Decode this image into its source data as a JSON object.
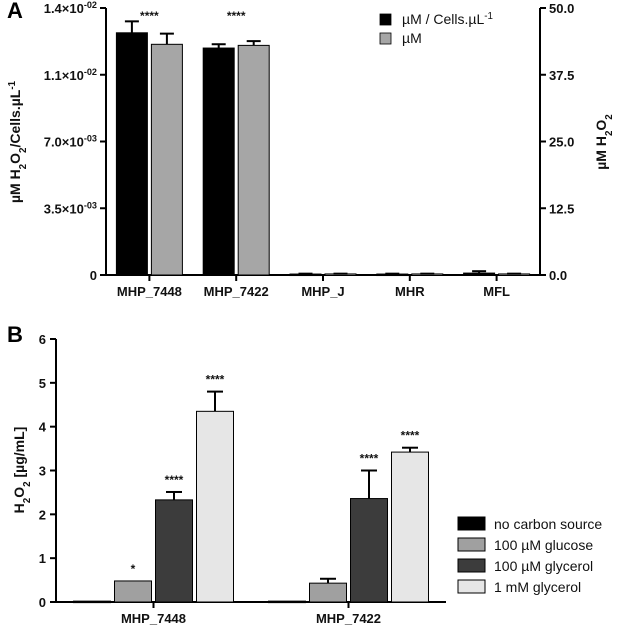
{
  "panels": {
    "a": {
      "letter": "A"
    },
    "b": {
      "letter": "B"
    }
  },
  "chart_data": [
    {
      "type": "bar",
      "categories": [
        "MHP_7448",
        "MHP_7422",
        "MHP_J",
        "MHR",
        "MFL"
      ],
      "series": [
        {
          "name": "µM / Cells.µL",
          "name_sup": "-1",
          "color": "#000000",
          "axis": "left",
          "values": [
            0.0127,
            0.0119,
            5e-05,
            5e-05,
            0.0001
          ],
          "errors": [
            0.0006,
            0.0002,
            2e-05,
            2e-05,
            0.0001
          ]
        },
        {
          "name": "µM",
          "color": "#a6a6a6",
          "axis": "right",
          "values": [
            43.2,
            43.0,
            0.2,
            0.2,
            0.2
          ],
          "errors": [
            2.0,
            0.8,
            0.05,
            0.05,
            0.05
          ]
        }
      ],
      "significance": [
        "****",
        "****",
        "",
        "",
        ""
      ],
      "y_left": {
        "label": "µM H2O2/Cells.µL-1",
        "label_parts": [
          "µM H",
          "2",
          "O",
          "2",
          "/Cells.µL",
          "-1"
        ],
        "ylim": [
          0,
          0.014
        ],
        "ticks": [
          0,
          0.0035,
          0.007,
          0.0105,
          0.014
        ],
        "tick_labels": [
          {
            "base": "0",
            "exp": ""
          },
          {
            "base": "3.5×10",
            "exp": "-03"
          },
          {
            "base": "7.0×10",
            "exp": "-03"
          },
          {
            "base": "1.1×10",
            "exp": "-02"
          },
          {
            "base": "1.4×10",
            "exp": "-02"
          }
        ]
      },
      "y_right": {
        "label": "µM H2O2",
        "label_parts": [
          "µM H",
          "2",
          "O",
          "2"
        ],
        "ylim": [
          0,
          50
        ],
        "ticks": [
          0,
          12.5,
          25,
          37.5,
          50
        ],
        "tick_labels": [
          "0.0",
          "12.5",
          "25.0",
          "37.5",
          "50.0"
        ]
      },
      "legend_position": "top-right",
      "grid": false
    },
    {
      "type": "bar",
      "categories": [
        "MHP_7448",
        "MHP_7422"
      ],
      "series": [
        {
          "name": "no carbon source",
          "color": "#000000",
          "values": [
            0.02,
            0.02
          ],
          "errors": [
            0,
            0
          ]
        },
        {
          "name": "100 µM glucose",
          "color": "#a0a0a0",
          "values": [
            0.48,
            0.43
          ],
          "errors": [
            0,
            0.1
          ]
        },
        {
          "name": "100 µM glycerol",
          "color": "#3c3c3c",
          "values": [
            2.33,
            2.36
          ],
          "errors": [
            0.18,
            0.64
          ]
        },
        {
          "name": "1 mM glycerol",
          "color": "#e6e6e6",
          "values": [
            4.35,
            3.42
          ],
          "errors": [
            0.45,
            0.1
          ]
        }
      ],
      "significance": [
        [
          "",
          "*",
          "****",
          "****"
        ],
        [
          "",
          "",
          "****",
          "****"
        ]
      ],
      "y": {
        "label": "H2O2 [µg/mL]",
        "label_parts": [
          "H",
          "2",
          "O",
          "2",
          " [µg/mL]"
        ],
        "ylim": [
          0,
          6
        ],
        "ticks": [
          0,
          1,
          2,
          3,
          4,
          5,
          6
        ],
        "tick_labels": [
          "0",
          "1",
          "2",
          "3",
          "4",
          "5",
          "6"
        ]
      },
      "legend_position": "bottom-right",
      "grid": false
    }
  ]
}
